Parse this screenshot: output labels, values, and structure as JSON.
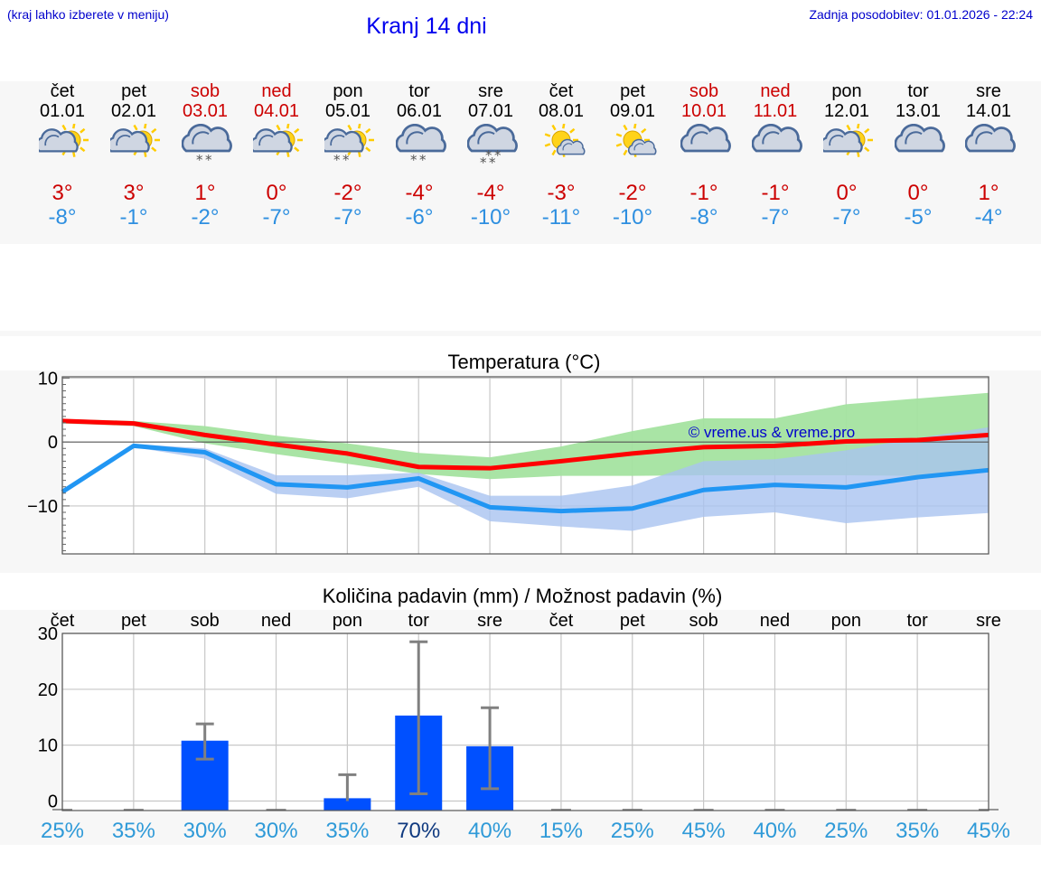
{
  "header": {
    "hint": "(kraj lahko izberete v meniju)",
    "title": "Kranj 14 dni",
    "updated_label": "Zadnja posodobitev:",
    "updated_value": "01.01.2026 - 22:24"
  },
  "colors": {
    "max_temp": "#cc0000",
    "min_temp": "#2e8fe0",
    "weekend": "#cc0000",
    "red_line": "#ff0000",
    "blue_line": "#2196f3",
    "green_band": "#a4e3a0",
    "blue_band": "#a9c3f0",
    "bar": "#0050ff",
    "prob_text": "#2f9ad8",
    "prob_highlight": "#103a80",
    "copyright": "#0000cc"
  },
  "days": [
    {
      "name": "čet",
      "date": "01.01",
      "icon": "partly-cloudy-icon",
      "tmax": "3°",
      "tmin": "-8°",
      "weekend": false
    },
    {
      "name": "pet",
      "date": "02.01",
      "icon": "partly-cloudy-icon",
      "tmax": "3°",
      "tmin": "-1°",
      "weekend": false
    },
    {
      "name": "sob",
      "date": "03.01",
      "icon": "cloudy-light-snow-icon",
      "tmax": "1°",
      "tmin": "-2°",
      "weekend": true
    },
    {
      "name": "ned",
      "date": "04.01",
      "icon": "partly-cloudy-icon",
      "tmax": "0°",
      "tmin": "-7°",
      "weekend": true
    },
    {
      "name": "pon",
      "date": "05.01",
      "icon": "partly-cloudy-snow-icon",
      "tmax": "-2°",
      "tmin": "-7°",
      "weekend": false
    },
    {
      "name": "tor",
      "date": "06.01",
      "icon": "cloudy-light-snow-icon",
      "tmax": "-4°",
      "tmin": "-6°",
      "weekend": false
    },
    {
      "name": "sre",
      "date": "07.01",
      "icon": "cloudy-snow-icon",
      "tmax": "-4°",
      "tmin": "-10°",
      "weekend": false
    },
    {
      "name": "čet",
      "date": "08.01",
      "icon": "mostly-sunny-icon",
      "tmax": "-3°",
      "tmin": "-11°",
      "weekend": false
    },
    {
      "name": "pet",
      "date": "09.01",
      "icon": "mostly-sunny-icon",
      "tmax": "-2°",
      "tmin": "-10°",
      "weekend": false
    },
    {
      "name": "sob",
      "date": "10.01",
      "icon": "cloudy-icon",
      "tmax": "-1°",
      "tmin": "-8°",
      "weekend": true
    },
    {
      "name": "ned",
      "date": "11.01",
      "icon": "cloudy-icon",
      "tmax": "-1°",
      "tmin": "-7°",
      "weekend": true
    },
    {
      "name": "pon",
      "date": "12.01",
      "icon": "partly-cloudy-icon",
      "tmax": "0°",
      "tmin": "-7°",
      "weekend": false
    },
    {
      "name": "tor",
      "date": "13.01",
      "icon": "cloudy-icon",
      "tmax": "0°",
      "tmin": "-5°",
      "weekend": false
    },
    {
      "name": "sre",
      "date": "14.01",
      "icon": "cloudy-icon",
      "tmax": "1°",
      "tmin": "-4°",
      "weekend": false
    }
  ],
  "chart_data": [
    {
      "type": "line",
      "title": "Temperatura (°C)",
      "x": [
        1,
        2,
        3,
        4,
        5,
        6,
        7,
        8,
        9,
        10,
        11,
        12,
        13,
        14
      ],
      "ylim": [
        -17.5,
        10.2
      ],
      "yticks": [
        10,
        0,
        -10
      ],
      "ytick_labels": [
        "10",
        "0",
        "−10"
      ],
      "grid": true,
      "watermark": "© vreme.us & vreme.pro",
      "series": [
        {
          "name": "max",
          "values": [
            3.3,
            2.9,
            1.1,
            -0.4,
            -1.8,
            -3.9,
            -4.1,
            -3.0,
            -1.8,
            -0.8,
            -0.6,
            0.1,
            0.3,
            1.1
          ]
        },
        {
          "name": "min",
          "values": [
            -7.8,
            -0.6,
            -1.6,
            -6.6,
            -7.1,
            -5.7,
            -10.2,
            -10.8,
            -10.4,
            -7.5,
            -6.7,
            -7.1,
            -5.5,
            -4.4
          ]
        },
        {
          "name": "max_range_upper",
          "values": [
            3.6,
            3.3,
            2.5,
            1.0,
            -0.2,
            -1.7,
            -2.4,
            -0.7,
            1.7,
            3.7,
            3.7,
            5.9,
            6.8,
            7.7
          ]
        },
        {
          "name": "max_range_lower",
          "values": [
            2.9,
            2.5,
            -0.2,
            -1.9,
            -3.4,
            -5.0,
            -5.8,
            -5.3,
            -5.3,
            -5.2,
            -5.2,
            -5.2,
            -5.3,
            -4.5
          ]
        },
        {
          "name": "min_range_upper",
          "values": [
            -7.6,
            -0.3,
            -1.0,
            -5.2,
            -5.2,
            -4.8,
            -8.4,
            -8.4,
            -6.8,
            -3.0,
            -2.7,
            -1.3,
            0.6,
            2.3
          ]
        },
        {
          "name": "min_range_lower",
          "values": [
            -8.0,
            -0.8,
            -2.6,
            -8.1,
            -8.8,
            -7.0,
            -12.4,
            -13.2,
            -13.9,
            -11.7,
            -11.0,
            -12.7,
            -11.8,
            -11.1
          ]
        }
      ]
    },
    {
      "type": "bar",
      "title": "Količina padavin (mm) / Možnost padavin (%)",
      "categories": [
        "čet",
        "pet",
        "sob",
        "ned",
        "pon",
        "tor",
        "sre",
        "čet",
        "pet",
        "sob",
        "ned",
        "pon",
        "tor",
        "sre"
      ],
      "values": [
        0,
        0,
        10.8,
        0,
        0.5,
        15.3,
        9.8,
        0,
        0,
        0,
        0,
        0,
        0,
        0
      ],
      "error_low": [
        0,
        0,
        7.5,
        0,
        0,
        1.3,
        2.2,
        0,
        0,
        0,
        0,
        0,
        0,
        0
      ],
      "error_high": [
        0,
        0,
        13.8,
        0,
        4.7,
        28.5,
        16.7,
        0,
        0,
        0,
        0,
        0,
        0,
        0
      ],
      "ylim": [
        -1.7,
        30
      ],
      "yticks": [
        0,
        10,
        20,
        30
      ],
      "ytick_labels": [
        "0",
        "10",
        "20",
        "30"
      ],
      "probability": [
        "25%",
        "35%",
        "30%",
        "30%",
        "35%",
        "70%",
        "40%",
        "15%",
        "25%",
        "45%",
        "40%",
        "25%",
        "35%",
        "45%"
      ],
      "probability_highlight_index": 5,
      "grid": true
    }
  ]
}
